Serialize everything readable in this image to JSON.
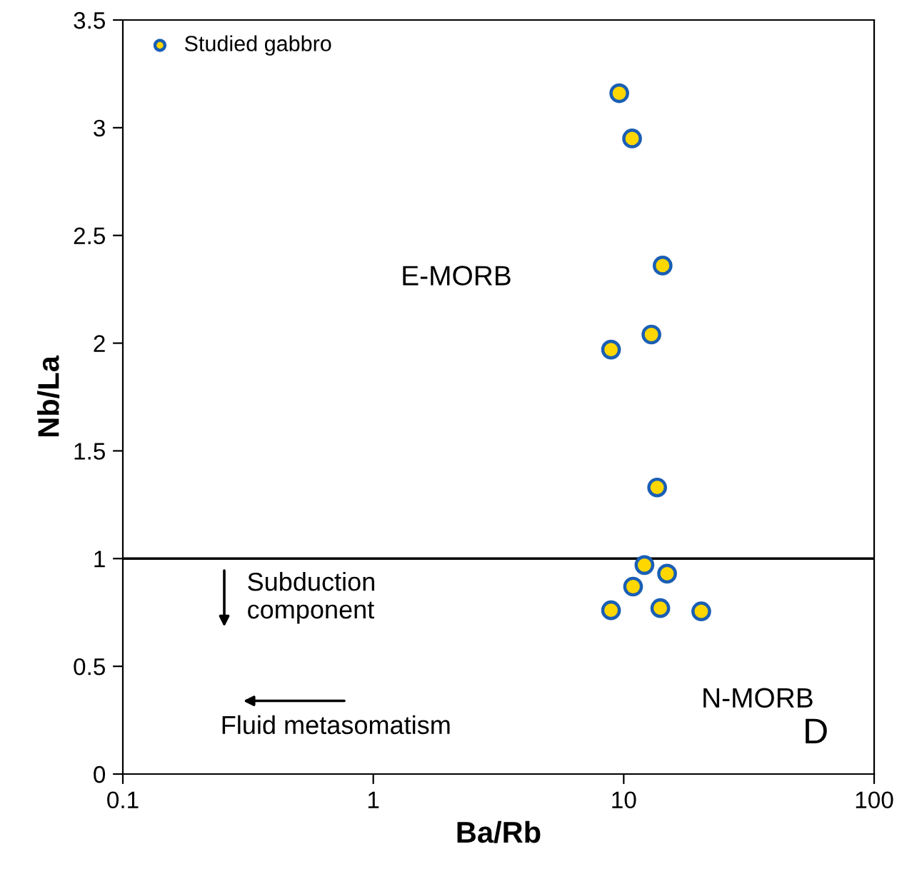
{
  "chart_data": {
    "type": "scatter",
    "xlabel": "Ba/Rb",
    "ylabel": "Nb/La",
    "series": [
      {
        "name": "Studied gabbro",
        "color": "#ffd700",
        "x": [
          9.6,
          10.8,
          14.3,
          12.9,
          8.9,
          13.6,
          12.1,
          14.9,
          10.9,
          8.9,
          14.0,
          20.4
        ],
        "values": [
          3.16,
          2.95,
          2.36,
          2.04,
          1.97,
          1.33,
          0.97,
          0.93,
          0.87,
          0.76,
          0.77,
          0.755
        ]
      }
    ],
    "log": "x",
    "xlim": [
      0.1,
      100
    ],
    "xticks": [
      0.1,
      1,
      10,
      100
    ],
    "ylim": [
      0,
      3.5
    ],
    "yticks": [
      0,
      0.5,
      1,
      1.5,
      2,
      2.5,
      3,
      3.5
    ],
    "ref_lines": [
      {
        "axis": "y",
        "value": 1,
        "color": "#000000"
      }
    ],
    "annotations": [
      "E-MORB",
      "N-MORB",
      "Subduction\ncomponent",
      "Fluid metasomatism",
      "D"
    ],
    "marker": "circle",
    "legend": "top left",
    "grid": false
  }
}
